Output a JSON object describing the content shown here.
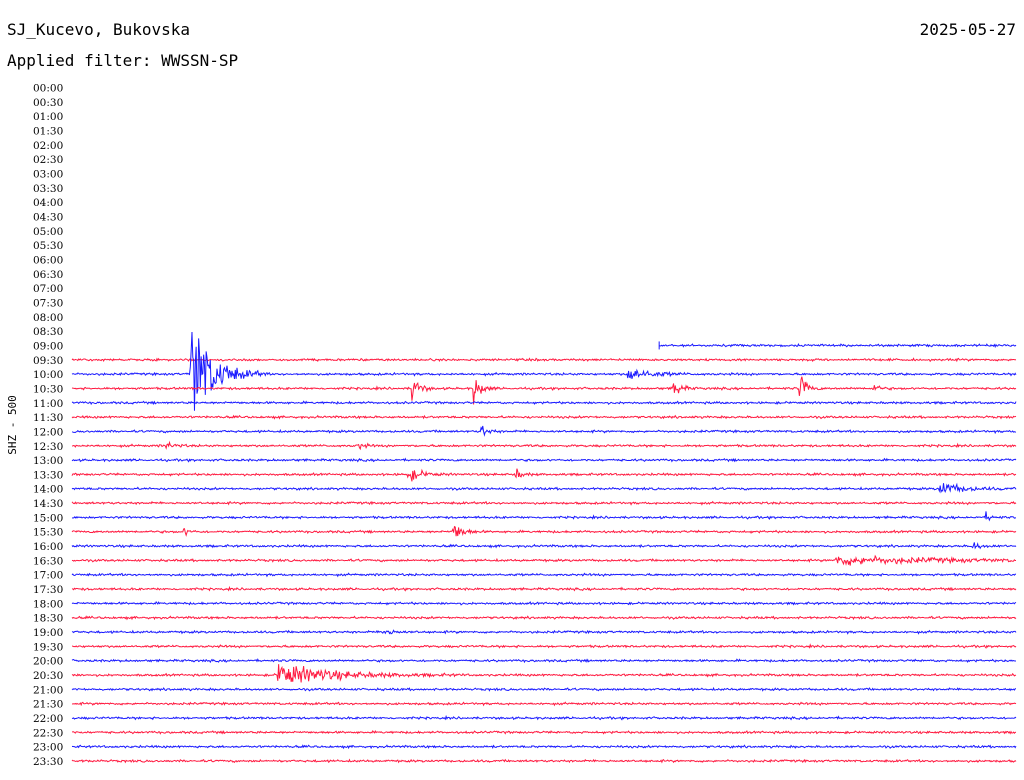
{
  "header": {
    "station": "SJ_Kucevo, Bukovska",
    "date": "2025-05-27",
    "filter": "Applied filter: WWSSN-SP"
  },
  "colors": {
    "blue": "#1a1aff",
    "red": "#ff1a40",
    "background": "#ffffff",
    "text": "#000000"
  },
  "chart_data": {
    "type": "line",
    "title": "SJ_Kucevo, Bukovska",
    "ylabel": "SHZ - 500",
    "row_labels": [
      "00:00",
      "00:30",
      "01:00",
      "01:30",
      "02:00",
      "02:30",
      "03:00",
      "03:30",
      "04:00",
      "04:30",
      "05:00",
      "05:30",
      "06:00",
      "06:30",
      "07:00",
      "07:30",
      "08:00",
      "08:30",
      "09:00",
      "09:30",
      "10:00",
      "10:30",
      "11:00",
      "11:30",
      "12:00",
      "12:30",
      "13:00",
      "13:30",
      "14:00",
      "14:30",
      "15:00",
      "15:30",
      "16:00",
      "16:30",
      "17:00",
      "17:30",
      "18:00",
      "18:30",
      "19:00",
      "19:30",
      "20:00",
      "20:30",
      "21:00",
      "21:30",
      "22:00",
      "22:30",
      "23:00",
      "23:30"
    ],
    "row_span_minutes": 30,
    "trace_start": "09:00 + 0.36",
    "row_colors": [
      "red",
      "blue"
    ],
    "events": [
      {
        "row": "10:00",
        "pos": 0.127,
        "amp": 50,
        "dur": 0.02,
        "color": "blue"
      },
      {
        "row": "10:00",
        "pos": 0.59,
        "amp": 6,
        "dur": 0.02,
        "color": "blue"
      },
      {
        "row": "10:30",
        "pos": 0.362,
        "amp": 11,
        "dur": 0.006,
        "color": "red"
      },
      {
        "row": "10:30",
        "pos": 0.427,
        "amp": 12,
        "dur": 0.006,
        "color": "red"
      },
      {
        "row": "10:30",
        "pos": 0.638,
        "amp": 8,
        "dur": 0.006,
        "color": "red"
      },
      {
        "row": "10:30",
        "pos": 0.772,
        "amp": 12,
        "dur": 0.006,
        "color": "red"
      },
      {
        "row": "10:30",
        "pos": 0.849,
        "amp": 4,
        "dur": 0.005,
        "color": "red"
      },
      {
        "row": "12:00",
        "pos": 0.435,
        "amp": 5,
        "dur": 0.006,
        "color": "blue"
      },
      {
        "row": "12:30",
        "pos": 0.1,
        "amp": 3,
        "dur": 0.008,
        "color": "red"
      },
      {
        "row": "12:30",
        "pos": 0.303,
        "amp": 4,
        "dur": 0.005,
        "color": "red"
      },
      {
        "row": "13:30",
        "pos": 0.357,
        "amp": 6,
        "dur": 0.012,
        "color": "red"
      },
      {
        "row": "13:30",
        "pos": 0.47,
        "amp": 5,
        "dur": 0.006,
        "color": "red"
      },
      {
        "row": "14:00",
        "pos": 0.92,
        "amp": 6,
        "dur": 0.02,
        "color": "blue"
      },
      {
        "row": "15:00",
        "pos": 0.97,
        "amp": 3,
        "dur": 0.005,
        "color": "blue"
      },
      {
        "row": "15:30",
        "pos": 0.12,
        "amp": 3,
        "dur": 0.005,
        "color": "red"
      },
      {
        "row": "15:30",
        "pos": 0.405,
        "amp": 9,
        "dur": 0.008,
        "color": "red"
      },
      {
        "row": "16:00",
        "pos": 0.955,
        "amp": 3,
        "dur": 0.008,
        "color": "blue"
      },
      {
        "row": "16:30",
        "pos": 0.81,
        "amp": 4,
        "dur": 0.09,
        "color": "red"
      },
      {
        "row": "19:00",
        "pos": 0.33,
        "amp": 3,
        "dur": 0.01,
        "color": "blue"
      },
      {
        "row": "20:30",
        "pos": 0.22,
        "amp": 10,
        "dur": 0.05,
        "color": "red"
      }
    ]
  }
}
